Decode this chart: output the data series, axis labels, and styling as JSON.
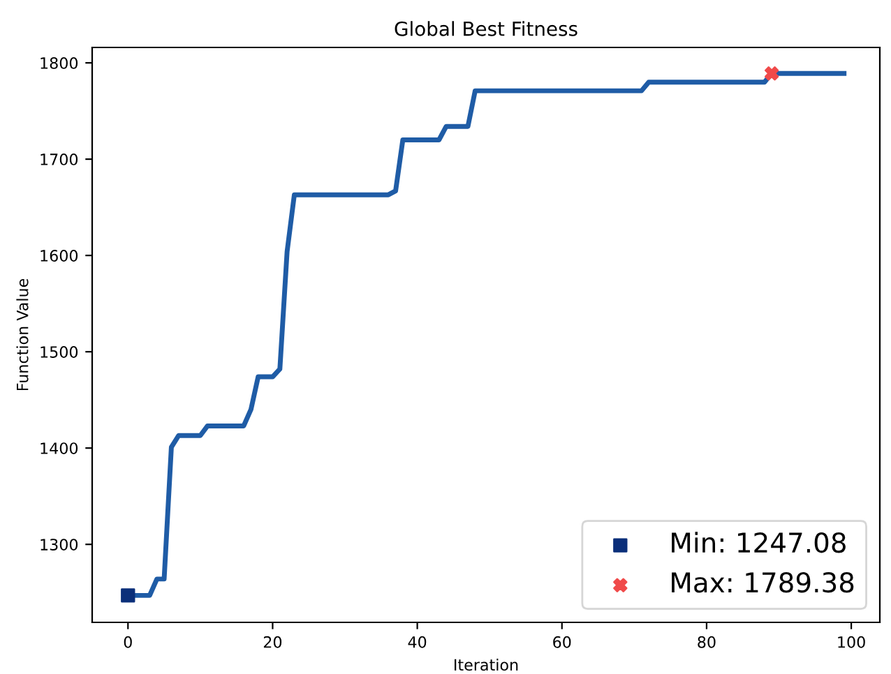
{
  "chart_data": {
    "type": "line",
    "title": "Global Best Fitness",
    "xlabel": "Iteration",
    "ylabel": "Function Value",
    "xlim": [
      -4.95,
      103.95
    ],
    "xticks": [
      0,
      20,
      40,
      60,
      80,
      100
    ],
    "ylim": [
      1219,
      1816
    ],
    "yticks": [
      1300,
      1400,
      1500,
      1600,
      1700,
      1800
    ],
    "grid": false,
    "legend": "bottom right",
    "series": [
      {
        "color": "#1f5ca6",
        "x": [
          0,
          1,
          2,
          3,
          4,
          5,
          6,
          7,
          8,
          9,
          10,
          11,
          12,
          13,
          14,
          15,
          16,
          17,
          18,
          19,
          20,
          21,
          22,
          23,
          24,
          25,
          26,
          27,
          28,
          29,
          30,
          31,
          32,
          33,
          34,
          35,
          36,
          37,
          38,
          39,
          40,
          41,
          42,
          43,
          44,
          45,
          46,
          47,
          48,
          49,
          50,
          51,
          52,
          53,
          54,
          55,
          56,
          57,
          58,
          59,
          60,
          61,
          62,
          63,
          64,
          65,
          66,
          67,
          68,
          69,
          70,
          71,
          72,
          73,
          74,
          75,
          76,
          77,
          78,
          79,
          80,
          81,
          82,
          83,
          84,
          85,
          86,
          87,
          88,
          89,
          90,
          91,
          92,
          93,
          94,
          95,
          96,
          97,
          98,
          99
        ],
        "values": [
          1247,
          1247,
          1247,
          1247,
          1264,
          1264,
          1401,
          1413,
          1413,
          1413,
          1413,
          1423,
          1423,
          1423,
          1423,
          1423,
          1423,
          1440,
          1474,
          1474,
          1474,
          1482,
          1604,
          1663,
          1663,
          1663,
          1663,
          1663,
          1663,
          1663,
          1663,
          1663,
          1663,
          1663,
          1663,
          1663,
          1663,
          1667,
          1720,
          1720,
          1720,
          1720,
          1720,
          1720,
          1734,
          1734,
          1734,
          1734,
          1771,
          1771,
          1771,
          1771,
          1771,
          1771,
          1771,
          1771,
          1771,
          1771,
          1771,
          1771,
          1771,
          1771,
          1771,
          1771,
          1771,
          1771,
          1771,
          1771,
          1771,
          1771,
          1771,
          1771,
          1780,
          1780,
          1780,
          1780,
          1780,
          1780,
          1780,
          1780,
          1780,
          1780,
          1780,
          1780,
          1780,
          1780,
          1780,
          1780,
          1780,
          1789,
          1789,
          1789,
          1789,
          1789,
          1789,
          1789,
          1789,
          1789,
          1789,
          1789
        ]
      },
      {
        "type": "scatter",
        "name": "Min: 1247.08",
        "color": "#0b2f7a",
        "marker": "square",
        "x": [
          0
        ],
        "values": [
          1247
        ]
      },
      {
        "type": "scatter",
        "name": "Max: 1789.38",
        "color": "#f04a4a",
        "marker": "cross",
        "x": [
          89
        ],
        "values": [
          1789
        ]
      }
    ]
  }
}
